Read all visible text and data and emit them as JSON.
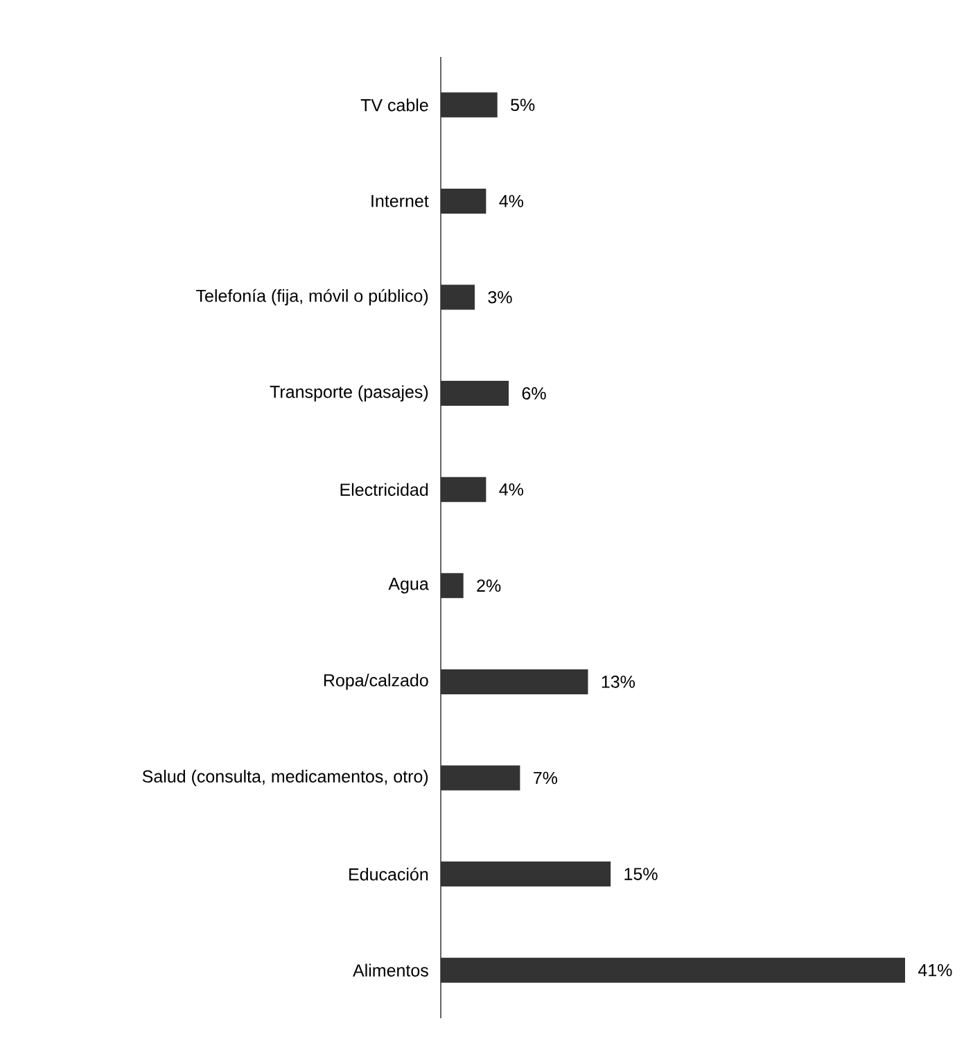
{
  "chart_data": {
    "type": "bar",
    "orientation": "horizontal",
    "color": "#333333",
    "categories": [
      "TV cable",
      "Internet",
      "Telefonía (fija, móvil o público)",
      "Transporte (pasajes)",
      "Electricidad",
      "Agua",
      "Ropa/calzado",
      "Salud (consulta, medicamentos, otro)",
      "Educación",
      "Alimentos"
    ],
    "values": [
      5,
      4,
      3,
      6,
      4,
      2,
      13,
      7,
      15,
      41
    ],
    "value_labels": [
      "5%",
      "4%",
      "3%",
      "6%",
      "4%",
      "2%",
      "13%",
      "7%",
      "15%",
      "41%"
    ]
  }
}
